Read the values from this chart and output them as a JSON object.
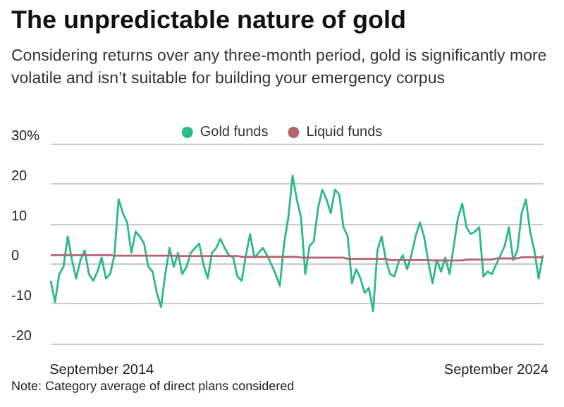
{
  "chart_data": {
    "type": "line",
    "title": "The unpredictable nature of gold",
    "subtitle": "Considering returns over any three-month period, gold is significantly more volatile and isn’t suitable for building your emergency corpus",
    "annotations": [
      "Note: Category average of direct plans considered"
    ],
    "categories": [
      null,
      null,
      null,
      null,
      null,
      null,
      null,
      null,
      null,
      null,
      null,
      null,
      "September 2014",
      null,
      null,
      null,
      null,
      null,
      null,
      null,
      null,
      null,
      null,
      null,
      null,
      null,
      null,
      null,
      null,
      null,
      null,
      null,
      null,
      null,
      null,
      null,
      null,
      null,
      null,
      null,
      null,
      null,
      null,
      null,
      null,
      null,
      null,
      null,
      null,
      null,
      null,
      null,
      null,
      null,
      null,
      null,
      null,
      null,
      null,
      null,
      null,
      null,
      null,
      null,
      null,
      null,
      null,
      null,
      null,
      null,
      null,
      null,
      null,
      null,
      null,
      null,
      null,
      null,
      null,
      null,
      null,
      null,
      null,
      null,
      null,
      null,
      null,
      null,
      null,
      null,
      null,
      null,
      null,
      null,
      null,
      null,
      null,
      null,
      null,
      null,
      null,
      null,
      null,
      null,
      null,
      "September 2024",
      null,
      null,
      null,
      null,
      null,
      null,
      null,
      null,
      null,
      null,
      null
    ],
    "series": [
      {
        "name": "Gold funds",
        "color": "#2bb98a",
        "values": [
          -4.3,
          -9.6,
          -2.6,
          -0.8,
          6.8,
          0.9,
          -3.7,
          0.9,
          3.3,
          -2.6,
          -4.3,
          -2,
          1.5,
          -3.7,
          -2.6,
          2.1,
          16.1,
          12.6,
          10.3,
          2.7,
          8,
          6.8,
          5,
          -0.8,
          -2,
          -7.3,
          -10.8,
          -2.6,
          3.9,
          -0.8,
          2.7,
          -2.6,
          -0.8,
          2.7,
          3.9,
          5,
          -0.2,
          -3.7,
          2.7,
          3.9,
          6.2,
          3.9,
          2.1,
          1.5,
          -3.2,
          -4.3,
          2.1,
          7.4,
          1.5,
          2.7,
          3.9,
          2.1,
          -0.2,
          -2.6,
          -5.5,
          5,
          11.5,
          22,
          16,
          11.5,
          -2.6,
          4.4,
          5.6,
          13.8,
          18.5,
          16.1,
          12.6,
          18.5,
          17.3,
          9.1,
          6.8,
          -4.9,
          -1.4,
          -3.7,
          -7.3,
          -6.1,
          -11.9,
          3.3,
          6.8,
          0.9,
          -2.6,
          -3.2,
          0.4,
          2.1,
          -1.4,
          2.1,
          6.8,
          10.3,
          6.8,
          0.4,
          -4.9,
          0.9,
          -2,
          1.5,
          -2.6,
          4.4,
          11.5,
          15,
          9.1,
          7.4,
          8,
          9.1,
          -3.2,
          -2,
          -2.6,
          -0.2,
          2.1,
          4.4,
          9.1,
          0.9,
          3.3,
          12.6,
          16.1,
          8,
          3.3,
          -3.7,
          2.1
        ]
      },
      {
        "name": "Liquid funds",
        "color": "#b5646e",
        "values": [
          2.1,
          2.1,
          2.1,
          2.1,
          2.1,
          2.1,
          2.1,
          2.1,
          2.1,
          2.1,
          2.1,
          2.1,
          2.1,
          2.1,
          2.1,
          2,
          2,
          2,
          2,
          2,
          2,
          2,
          2,
          2,
          2,
          2,
          2,
          2,
          2,
          2,
          1.9,
          1.9,
          1.9,
          1.9,
          1.9,
          1.9,
          1.9,
          1.9,
          1.9,
          1.9,
          1.9,
          1.9,
          1.9,
          1.9,
          1.9,
          1.7,
          1.7,
          1.7,
          1.7,
          1.7,
          1.7,
          1.7,
          1.7,
          1.7,
          1.7,
          1.7,
          1.7,
          1.7,
          1.7,
          1.5,
          1.5,
          1.5,
          1.5,
          1.5,
          1.5,
          1.5,
          1.5,
          1.5,
          1.5,
          1.5,
          1.2,
          1.2,
          1.2,
          1.2,
          1.2,
          1.2,
          1.2,
          1.2,
          1.2,
          1.2,
          0.9,
          0.9,
          0.9,
          0.9,
          0.9,
          0.9,
          0.9,
          0.9,
          0.9,
          0.9,
          0.8,
          0.8,
          0.8,
          0.8,
          0.8,
          0.8,
          0.8,
          0.8,
          1,
          1,
          1,
          1,
          1,
          1,
          1,
          1.3,
          1.3,
          1.3,
          1.3,
          1.3,
          1.3,
          1.6,
          1.6,
          1.6,
          1.6,
          1.6,
          1.6
        ]
      }
    ],
    "ylim": [
      -20,
      30
    ],
    "yticks": [
      -20,
      -10,
      0,
      10,
      20,
      {
        "value": 30,
        "label": "30%"
      }
    ],
    "grid": "y",
    "legend": "top",
    "marker": "none",
    "line_style": "solid"
  }
}
